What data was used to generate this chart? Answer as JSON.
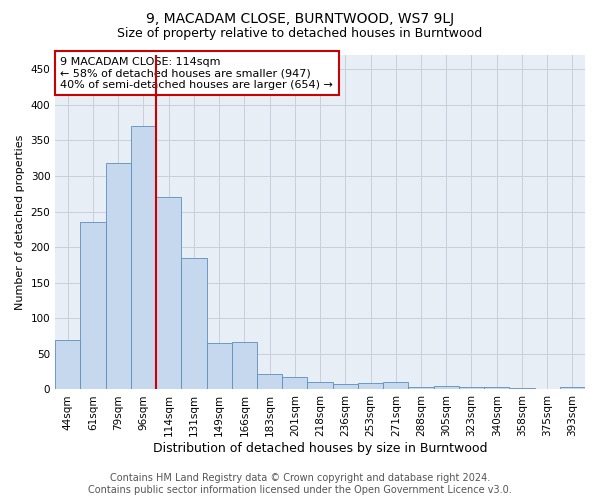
{
  "title": "9, MACADAM CLOSE, BURNTWOOD, WS7 9LJ",
  "subtitle": "Size of property relative to detached houses in Burntwood",
  "xlabel": "Distribution of detached houses by size in Burntwood",
  "ylabel": "Number of detached properties",
  "categories": [
    "44sqm",
    "61sqm",
    "79sqm",
    "96sqm",
    "114sqm",
    "131sqm",
    "149sqm",
    "166sqm",
    "183sqm",
    "201sqm",
    "218sqm",
    "236sqm",
    "253sqm",
    "271sqm",
    "288sqm",
    "305sqm",
    "323sqm",
    "340sqm",
    "358sqm",
    "375sqm",
    "393sqm"
  ],
  "values": [
    70,
    235,
    318,
    370,
    270,
    185,
    65,
    67,
    22,
    18,
    11,
    7,
    9,
    11,
    4,
    5,
    4,
    4,
    2,
    0,
    3
  ],
  "bar_color": "#c5d8ed",
  "bar_edge_color": "#5a8fc0",
  "highlight_index": 4,
  "highlight_line_color": "#cc0000",
  "annotation_text": "9 MACADAM CLOSE: 114sqm\n← 58% of detached houses are smaller (947)\n40% of semi-detached houses are larger (654) →",
  "annotation_box_color": "#ffffff",
  "annotation_box_edge_color": "#cc0000",
  "ylim": [
    0,
    470
  ],
  "yticks": [
    0,
    50,
    100,
    150,
    200,
    250,
    300,
    350,
    400,
    450
  ],
  "grid_color": "#c8d0da",
  "background_color": "#e8eef5",
  "footer_line1": "Contains HM Land Registry data © Crown copyright and database right 2024.",
  "footer_line2": "Contains public sector information licensed under the Open Government Licence v3.0.",
  "title_fontsize": 10,
  "subtitle_fontsize": 9,
  "xlabel_fontsize": 9,
  "ylabel_fontsize": 8,
  "tick_fontsize": 7.5,
  "annotation_fontsize": 8,
  "footer_fontsize": 7
}
